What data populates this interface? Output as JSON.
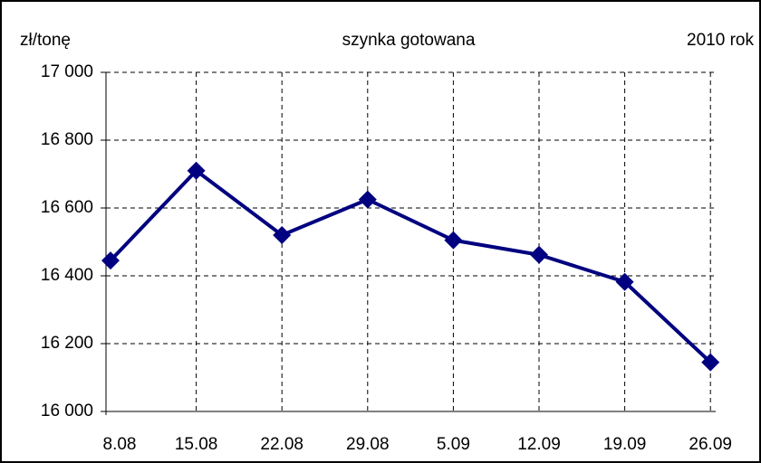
{
  "chart_data": {
    "type": "line",
    "title": "szynka gotowana",
    "y_axis_label": "zł/tonę",
    "annotation": "2010 rok",
    "categories": [
      "8.08",
      "15.08",
      "22.08",
      "29.08",
      "5.09",
      "12.09",
      "19.09",
      "26.09"
    ],
    "values": [
      16445,
      16710,
      16520,
      16625,
      16505,
      16462,
      16382,
      16145
    ],
    "color": "#000080",
    "ylim": [
      16000,
      17000
    ],
    "yticks": [
      {
        "value": 16000,
        "label": "16 000"
      },
      {
        "value": 16200,
        "label": "16 200"
      },
      {
        "value": 16400,
        "label": "16 400"
      },
      {
        "value": 16600,
        "label": "16 600"
      },
      {
        "value": 16800,
        "label": "16 800"
      },
      {
        "value": 17000,
        "label": "17 000"
      }
    ],
    "grid": true
  }
}
